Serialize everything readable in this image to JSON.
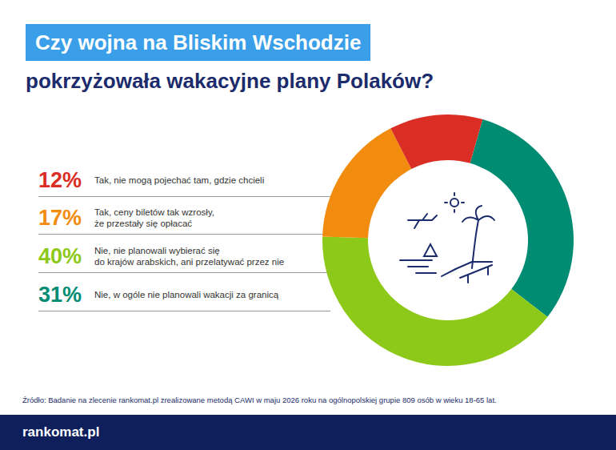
{
  "chart_data": {
    "type": "pie",
    "title": "Czy wojna na Bliskim Wschodzie",
    "subtitle": "pokrzyżowała wakacyjne plany Polaków?",
    "categories": [
      "Nie, w ogóle nie planowali wakacji za granicą",
      "Nie, nie planowali wybierać się\ndo krajów arabskich, ani przelatywać przez nie",
      "Tak, ceny biletów tak wzrosły,\nże przestały się opłacać",
      "Tak, nie mogą pojechać tam, gdzie chcieli"
    ],
    "values": [
      31,
      40,
      17,
      12
    ],
    "value_labels": [
      "31%",
      "40%",
      "17%",
      "12%"
    ],
    "colors": [
      "#008c72",
      "#8dc919",
      "#f28c0f",
      "#da2d24"
    ],
    "legend": "left",
    "source": "Źródło: Badanie na zlecenie rankomat.pl zrealizowane metodą CAWI w maju 2026 roku na ogólnopolskiej grupie 809 osób w wieku 18-65 lat.",
    "logo": "rankomat.pl"
  }
}
